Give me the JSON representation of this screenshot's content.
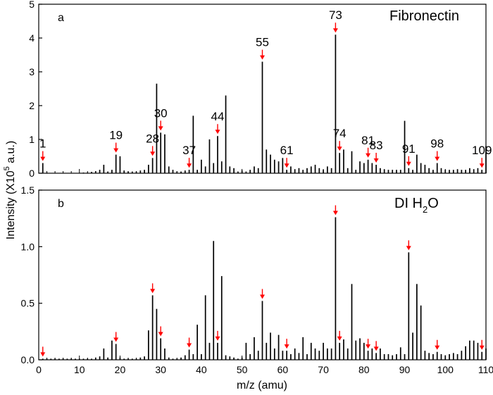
{
  "chart_data": [
    {
      "type": "bar",
      "panel": "a",
      "title": "Fibronectin",
      "xlim": [
        0,
        110
      ],
      "ylim": [
        0,
        5
      ],
      "yticks": [
        "0",
        "1",
        "2",
        "3",
        "4",
        "5"
      ],
      "ylabel": "Intensity (X10",
      "ylabel_sup": "5",
      "ylabel_suffix": " a.u.)",
      "series": [
        {
          "x": [
            1,
            2,
            3,
            4,
            5,
            6,
            7,
            8,
            9,
            10,
            11,
            12,
            13,
            14,
            15,
            16,
            17,
            18,
            19,
            20,
            21,
            22,
            23,
            24,
            25,
            26,
            27,
            28,
            29,
            30,
            31,
            32,
            33,
            34,
            35,
            36,
            37,
            38,
            39,
            40,
            41,
            42,
            43,
            44,
            45,
            46,
            47,
            48,
            49,
            50,
            51,
            52,
            53,
            54,
            55,
            56,
            57,
            58,
            59,
            60,
            61,
            62,
            63,
            64,
            65,
            66,
            67,
            68,
            69,
            70,
            71,
            72,
            73,
            74,
            75,
            76,
            77,
            78,
            79,
            80,
            81,
            82,
            83,
            84,
            85,
            86,
            87,
            88,
            89,
            90,
            91,
            92,
            93,
            94,
            95,
            96,
            97,
            98,
            99,
            100,
            101,
            102,
            103,
            104,
            105,
            106,
            107,
            108,
            109,
            110
          ],
          "y": [
            0.3,
            0.02,
            0.01,
            0.01,
            0.01,
            0.01,
            0.01,
            0.01,
            0.01,
            0.01,
            0.02,
            0.02,
            0.04,
            0.06,
            0.1,
            0.25,
            0.05,
            0.1,
            0.55,
            0.5,
            0.08,
            0.05,
            0.05,
            0.05,
            0.08,
            0.1,
            0.25,
            0.45,
            2.65,
            1.2,
            1.15,
            0.2,
            0.1,
            0.05,
            0.05,
            0.08,
            0.1,
            1.7,
            0.1,
            0.4,
            0.2,
            1.0,
            0.3,
            1.1,
            0.35,
            2.3,
            0.2,
            0.15,
            0.05,
            0.08,
            0.05,
            0.1,
            0.2,
            0.15,
            3.3,
            0.7,
            0.55,
            0.4,
            0.35,
            0.45,
            0.1,
            0.2,
            0.12,
            0.15,
            0.1,
            0.15,
            0.2,
            0.25,
            0.15,
            0.1,
            0.2,
            0.15,
            4.1,
            0.6,
            0.7,
            0.15,
            0.65,
            0.1,
            0.35,
            0.3,
            0.4,
            0.3,
            0.25,
            0.15,
            0.12,
            0.1,
            0.1,
            0.1,
            0.1,
            1.55,
            0.15,
            0.1,
            0.55,
            0.3,
            0.25,
            0.15,
            0.1,
            0.3,
            0.15,
            0.1,
            0.1,
            0.1,
            0.12,
            0.1,
            0.1,
            0.15,
            0.12,
            0.15,
            0.1,
            0.8
          ]
        }
      ],
      "peak_labels": [
        {
          "x": 1,
          "label": "1"
        },
        {
          "x": 19,
          "label": "19"
        },
        {
          "x": 28,
          "label": "28"
        },
        {
          "x": 30,
          "label": "30"
        },
        {
          "x": 37,
          "label": "37"
        },
        {
          "x": 44,
          "label": "44"
        },
        {
          "x": 55,
          "label": "55"
        },
        {
          "x": 61,
          "label": "61"
        },
        {
          "x": 73,
          "label": "73"
        },
        {
          "x": 74,
          "label": "74"
        },
        {
          "x": 81,
          "label": "81"
        },
        {
          "x": 83,
          "label": "83"
        },
        {
          "x": 91,
          "label": "91"
        },
        {
          "x": 98,
          "label": "98"
        },
        {
          "x": 109,
          "label": "109"
        }
      ],
      "arrows_x": [
        1,
        19,
        28,
        30,
        37,
        44,
        55,
        61,
        73,
        74,
        81,
        83,
        91,
        98,
        109
      ],
      "arrow_color": "#ff0000",
      "bar_color": "#000000"
    },
    {
      "type": "bar",
      "panel": "b",
      "title": "DI H",
      "title_sub": "2",
      "title_suffix": "O",
      "xlim": [
        0,
        110
      ],
      "ylim": [
        0,
        1.5
      ],
      "xticks": [
        "0",
        "10",
        "20",
        "30",
        "40",
        "50",
        "60",
        "70",
        "80",
        "90",
        "100",
        "110"
      ],
      "yticks": [
        "0.0",
        "0.5",
        "1.0",
        "1.5"
      ],
      "xlabel": "m/z (amu)",
      "series": [
        {
          "x": [
            1,
            2,
            3,
            4,
            5,
            6,
            7,
            8,
            9,
            10,
            11,
            12,
            13,
            14,
            15,
            16,
            17,
            18,
            19,
            20,
            21,
            22,
            23,
            24,
            25,
            26,
            27,
            28,
            29,
            30,
            31,
            32,
            33,
            34,
            35,
            36,
            37,
            38,
            39,
            40,
            41,
            42,
            43,
            44,
            45,
            46,
            47,
            48,
            49,
            50,
            51,
            52,
            53,
            54,
            55,
            56,
            57,
            58,
            59,
            60,
            61,
            62,
            63,
            64,
            65,
            66,
            67,
            68,
            69,
            70,
            71,
            72,
            73,
            74,
            75,
            76,
            77,
            78,
            79,
            80,
            81,
            82,
            83,
            84,
            85,
            86,
            87,
            88,
            89,
            90,
            91,
            92,
            93,
            94,
            95,
            96,
            97,
            98,
            99,
            100,
            101,
            102,
            103,
            104,
            105,
            106,
            107,
            108,
            109,
            110
          ],
          "y": [
            0.01,
            0.01,
            0.01,
            0.01,
            0.01,
            0.01,
            0.01,
            0.01,
            0.01,
            0.01,
            0.01,
            0.01,
            0.01,
            0.02,
            0.03,
            0.1,
            0.02,
            0.17,
            0.14,
            0.02,
            0.01,
            0.01,
            0.01,
            0.01,
            0.02,
            0.03,
            0.26,
            0.57,
            0.45,
            0.19,
            0.1,
            0.02,
            0.01,
            0.01,
            0.02,
            0.04,
            0.09,
            0.05,
            0.31,
            0.05,
            0.57,
            0.15,
            1.05,
            0.15,
            0.74,
            0.04,
            0.03,
            0.02,
            0.01,
            0.02,
            0.15,
            0.05,
            0.2,
            0.08,
            0.52,
            0.15,
            0.24,
            0.1,
            0.22,
            0.08,
            0.08,
            0.05,
            0.1,
            0.06,
            0.2,
            0.05,
            0.15,
            0.1,
            0.08,
            0.15,
            0.1,
            0.1,
            1.26,
            0.15,
            0.18,
            0.1,
            0.67,
            0.17,
            0.19,
            0.15,
            0.08,
            0.1,
            0.06,
            0.1,
            0.05,
            0.05,
            0.04,
            0.05,
            0.11,
            0.05,
            0.95,
            0.24,
            0.67,
            0.48,
            0.08,
            0.06,
            0.05,
            0.07,
            0.05,
            0.04,
            0.05,
            0.06,
            0.05,
            0.08,
            0.12,
            0.17,
            0.17,
            0.15,
            0.07,
            0.1
          ]
        }
      ],
      "arrows_x": [
        1,
        19,
        28,
        30,
        37,
        44,
        55,
        61,
        73,
        74,
        81,
        83,
        91,
        98,
        109
      ],
      "arrow_color": "#ff0000",
      "bar_color": "#000000"
    }
  ]
}
